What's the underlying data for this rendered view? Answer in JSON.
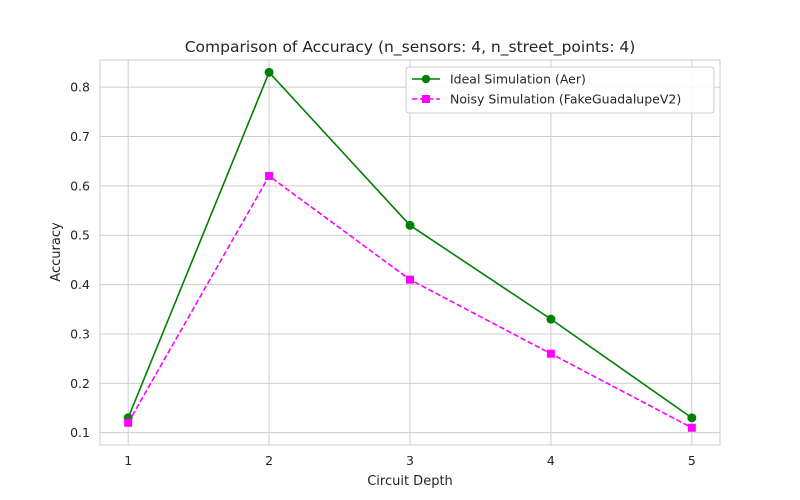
{
  "chart_data": {
    "type": "line",
    "title": "Comparison of Accuracy (n_sensors: 4, n_street_points: 4)",
    "xlabel": "Circuit Depth",
    "ylabel": "Accuracy",
    "x": [
      1,
      2,
      3,
      4,
      5
    ],
    "xticks": [
      "1",
      "2",
      "3",
      "4",
      "5"
    ],
    "yticks": [
      "0.1",
      "0.2",
      "0.3",
      "0.4",
      "0.5",
      "0.6",
      "0.7",
      "0.8"
    ],
    "xlim": [
      0.8,
      5.2
    ],
    "ylim": [
      0.075,
      0.855
    ],
    "grid": true,
    "legend_position": "top-right",
    "series": [
      {
        "name": "Ideal Simulation (Aer)",
        "values": [
          0.13,
          0.83,
          0.52,
          0.33,
          0.13
        ],
        "color": "#008000",
        "marker": "circle",
        "line_style": "solid"
      },
      {
        "name": "Noisy Simulation (FakeGuadalupeV2)",
        "values": [
          0.12,
          0.62,
          0.41,
          0.26,
          0.11
        ],
        "color": "#ff00ff",
        "marker": "square",
        "line_style": "dashed"
      }
    ]
  }
}
